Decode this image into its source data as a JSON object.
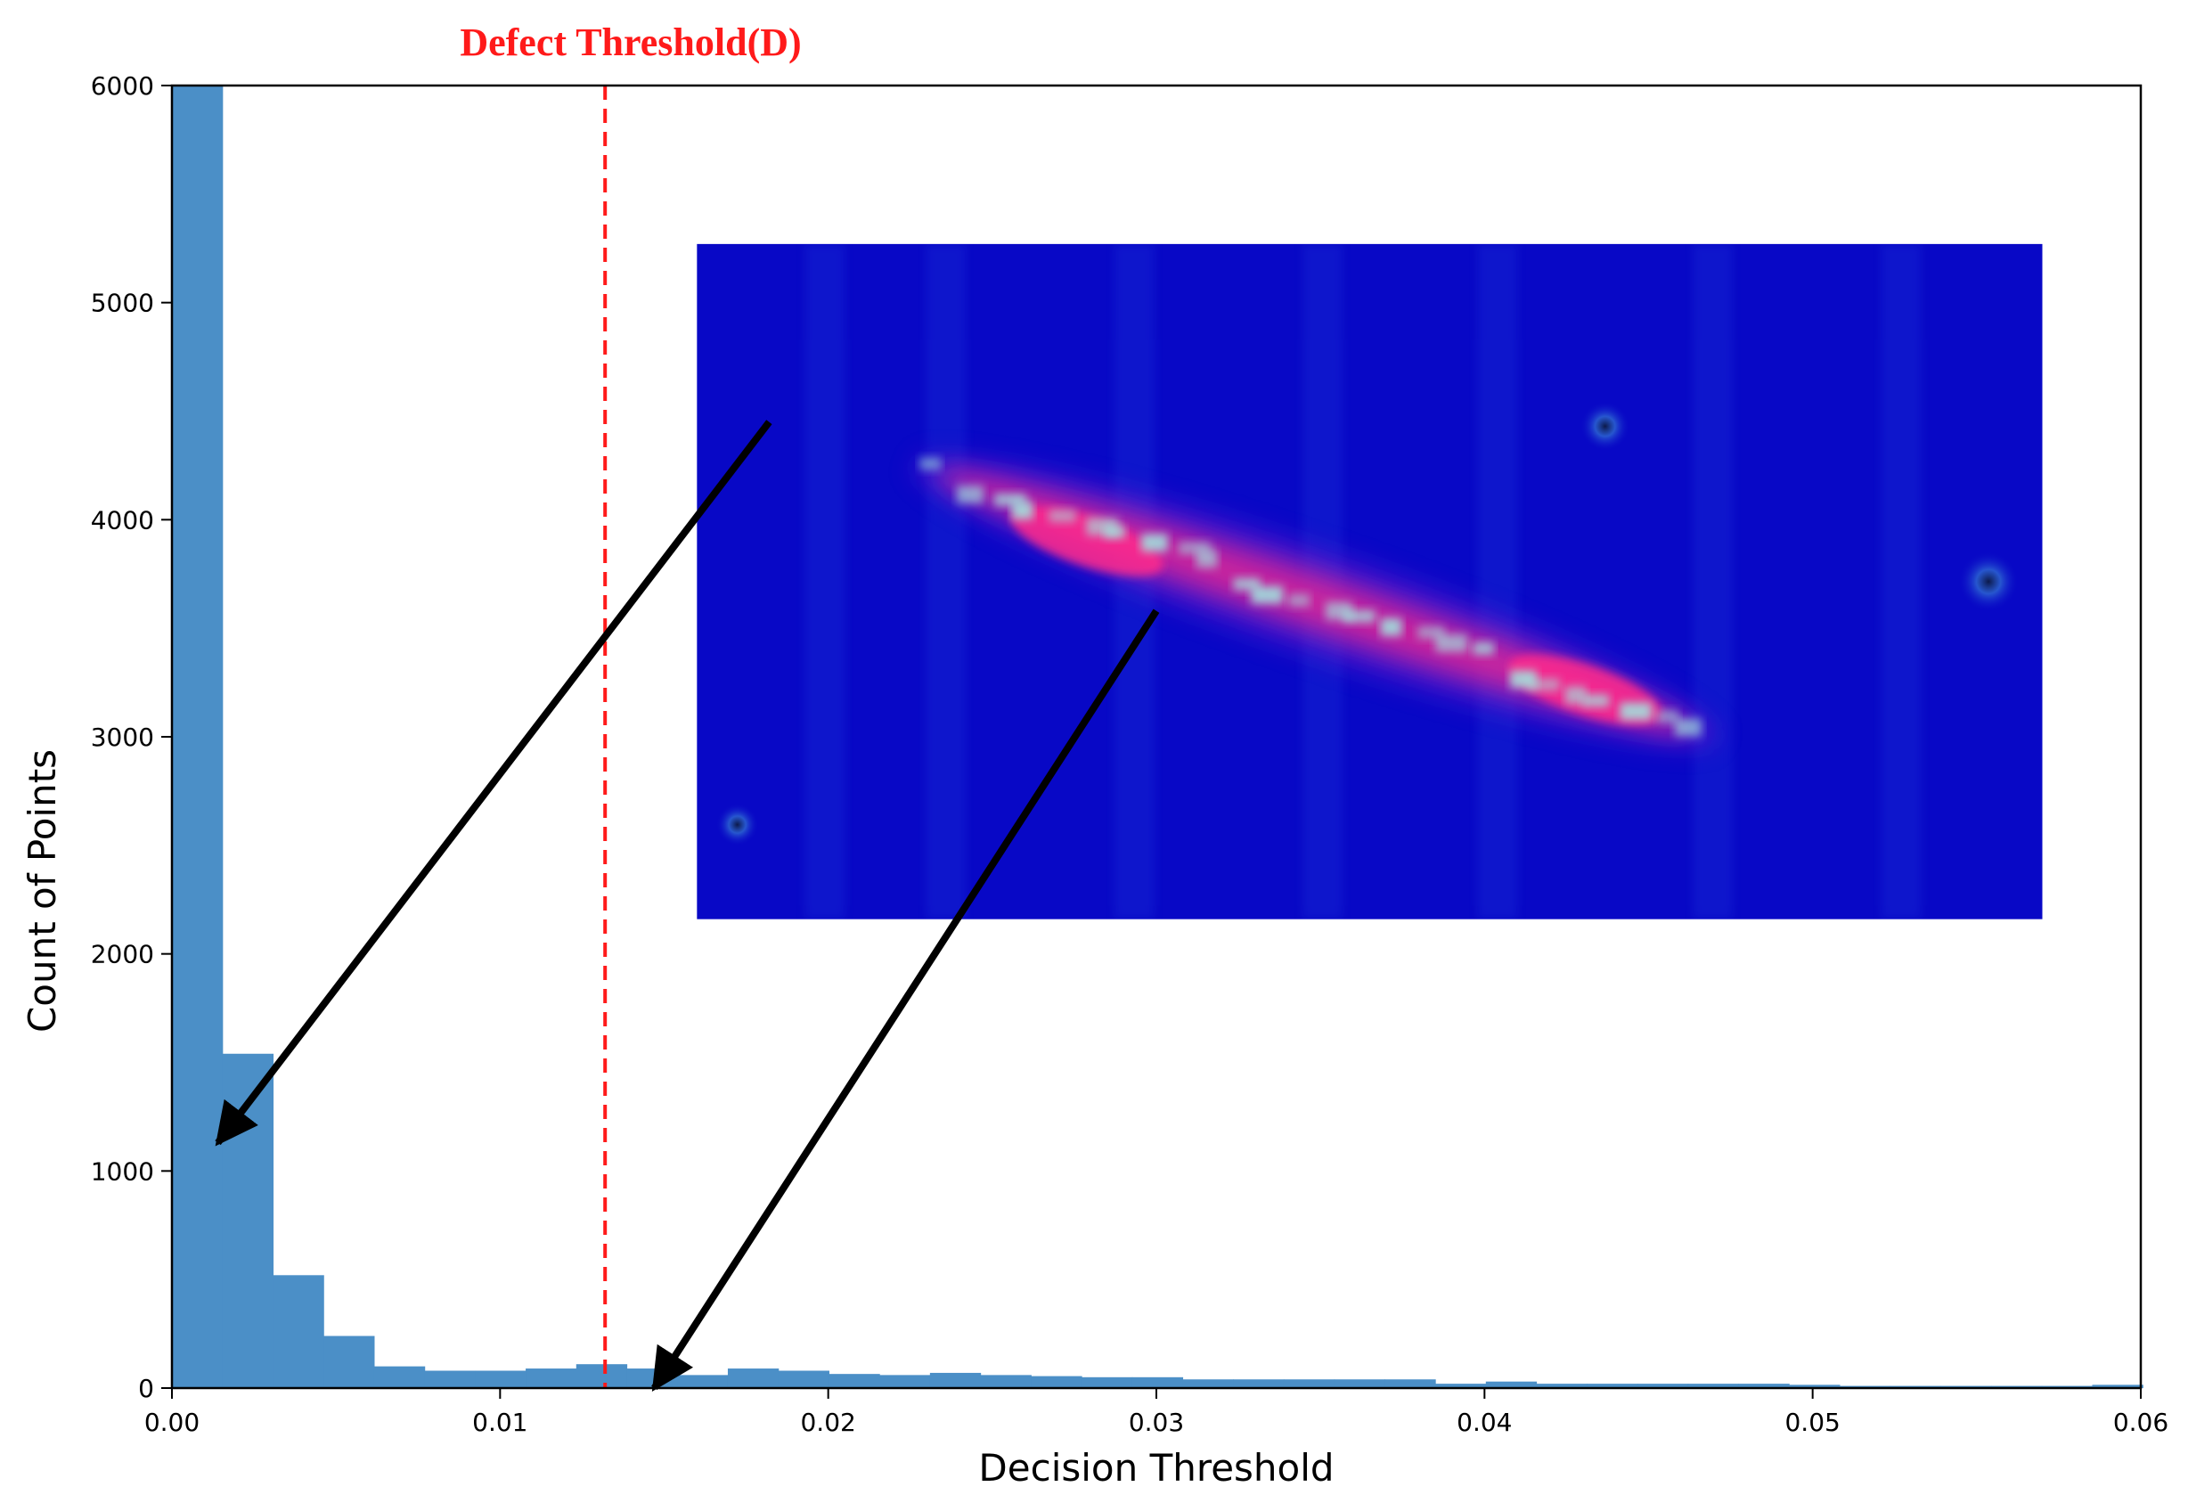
{
  "chart_data": {
    "type": "bar",
    "xlabel": "Decision Threshold",
    "ylabel": "Count of Points",
    "xlim": [
      0.0,
      0.06
    ],
    "ylim": [
      0,
      6000
    ],
    "xticks": [
      "0.00",
      "0.01",
      "0.02",
      "0.03",
      "0.04",
      "0.05",
      "0.06"
    ],
    "yticks": [
      "0",
      "1000",
      "2000",
      "3000",
      "4000",
      "5000",
      "6000"
    ],
    "bar_color": "#4b8fc7",
    "bin_width": 0.00154,
    "bins": [
      {
        "x0": 0.0,
        "value": 6000
      },
      {
        "x0": 0.00154,
        "value": 1540
      },
      {
        "x0": 0.00308,
        "value": 520
      },
      {
        "x0": 0.00462,
        "value": 240
      },
      {
        "x0": 0.00616,
        "value": 100
      },
      {
        "x0": 0.0077,
        "value": 80
      },
      {
        "x0": 0.00924,
        "value": 80
      },
      {
        "x0": 0.01078,
        "value": 90
      },
      {
        "x0": 0.01232,
        "value": 110
      },
      {
        "x0": 0.01386,
        "value": 90
      },
      {
        "x0": 0.0154,
        "value": 60
      },
      {
        "x0": 0.01694,
        "value": 90
      },
      {
        "x0": 0.01848,
        "value": 80
      },
      {
        "x0": 0.02002,
        "value": 65
      },
      {
        "x0": 0.02156,
        "value": 60
      },
      {
        "x0": 0.0231,
        "value": 70
      },
      {
        "x0": 0.02464,
        "value": 60
      },
      {
        "x0": 0.02618,
        "value": 55
      },
      {
        "x0": 0.02772,
        "value": 50
      },
      {
        "x0": 0.02926,
        "value": 50
      },
      {
        "x0": 0.0308,
        "value": 40
      },
      {
        "x0": 0.03234,
        "value": 40
      },
      {
        "x0": 0.03388,
        "value": 40
      },
      {
        "x0": 0.03542,
        "value": 40
      },
      {
        "x0": 0.03696,
        "value": 40
      },
      {
        "x0": 0.0385,
        "value": 20
      },
      {
        "x0": 0.04004,
        "value": 30
      },
      {
        "x0": 0.04158,
        "value": 20
      },
      {
        "x0": 0.04312,
        "value": 20
      },
      {
        "x0": 0.04466,
        "value": 20
      },
      {
        "x0": 0.0462,
        "value": 20
      },
      {
        "x0": 0.04774,
        "value": 20
      },
      {
        "x0": 0.04928,
        "value": 15
      },
      {
        "x0": 0.05082,
        "value": 10
      },
      {
        "x0": 0.05236,
        "value": 10
      },
      {
        "x0": 0.0539,
        "value": 10
      },
      {
        "x0": 0.05544,
        "value": 10
      },
      {
        "x0": 0.05698,
        "value": 10
      },
      {
        "x0": 0.05852,
        "value": 15
      }
    ],
    "threshold": {
      "label": "Defect Threshold(D)",
      "x": 0.0132,
      "color": "#ff1a1a"
    },
    "arrows": [
      {
        "from": [
          0.0182,
          4450
        ],
        "to": [
          0.0014,
          1130
        ]
      },
      {
        "from": [
          0.03,
          3580
        ],
        "to": [
          0.0147,
          0
        ]
      }
    ],
    "inset": {
      "description_icon": "defect-heatmap-image",
      "x_range": [
        0.016,
        0.057
      ],
      "y_range": [
        2160,
        5270
      ],
      "background_color": "#0808c6",
      "defect_color": "#ff2a8c",
      "highlight_color": "#9fe8e0"
    }
  }
}
